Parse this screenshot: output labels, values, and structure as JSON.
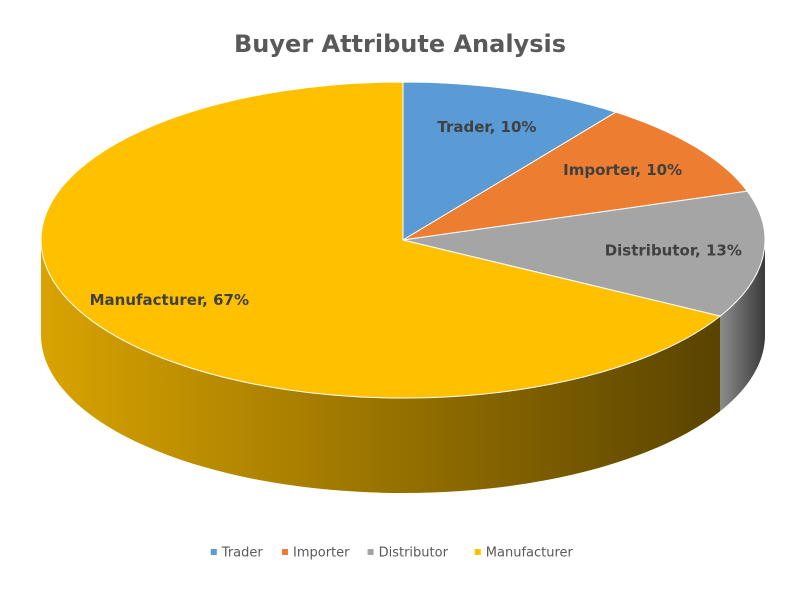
{
  "chart_data": {
    "type": "pie3d",
    "title": "Buyer Attribute Analysis",
    "categories": [
      "Trader",
      "Importer",
      "Distributor",
      "Manufacturer"
    ],
    "values": [
      10,
      10,
      13,
      67
    ],
    "value_labels": [
      "Trader, 10%",
      "Importer, 10%",
      "Distributor, 13%",
      "Manufacturer, 67%"
    ],
    "colors": [
      "#5b9bd5",
      "#ed7d31",
      "#a5a5a5",
      "#ffc000"
    ],
    "legend": "bottom"
  }
}
